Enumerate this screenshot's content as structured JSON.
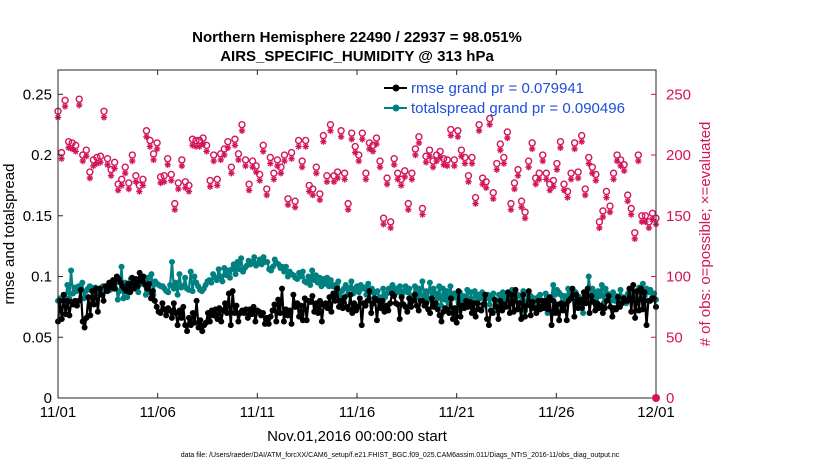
{
  "chart_data": {
    "type": "line",
    "title": "Northern Hemisphere 22490 / 22937 = 98.051%",
    "subtitle": "AIRS_SPECIFIC_HUMIDITY @ 313 hPa",
    "xlabel": "Nov.01,2016 00:00:00 start",
    "ylabel": "rmse and totalspread",
    "ylabel_right": "# of obs: o=possible; ×=evaluated",
    "x_ticks": [
      "11/01",
      "11/06",
      "11/11",
      "11/16",
      "11/21",
      "11/26",
      "12/01"
    ],
    "y_ticks": [
      "0",
      "0.05",
      "0.1",
      "0.15",
      "0.2",
      "0.25"
    ],
    "y_ticks_right": [
      "0",
      "50",
      "100",
      "150",
      "200",
      "250"
    ],
    "xlim_days": [
      0,
      30
    ],
    "ylim": [
      0,
      0.27
    ],
    "ylim_right": [
      0,
      270
    ],
    "footnote": "data file: /Users/raeder/DAI/ATM_forcXX/CAM6_setup/f.e21.FHIST_BGC.f09_025.CAM6assim.011/Diags_NTrS_2016-11/obs_diag_output.nc",
    "colors": {
      "rmse": "#000000",
      "spread": "#008080",
      "obs": "#d3145a",
      "legend_text": "#1f4fdc"
    },
    "series": [
      {
        "name": "rmse grand pr = 0.079941",
        "values": [
          0.063,
          0.08,
          0.065,
          0.085,
          0.069,
          0.08,
          0.068,
          0.079,
          0.077,
          0.08,
          0.076,
          0.08,
          0.089,
          0.063,
          0.058,
          0.066,
          0.083,
          0.068,
          0.088,
          0.077,
          0.09,
          0.071,
          0.09,
          0.085,
          0.08,
          0.092,
          0.088,
          0.095,
          0.091,
          0.097,
          0.09,
          0.1,
          0.098,
          0.095,
          0.092,
          0.09,
          0.088,
          0.094,
          0.087,
          0.099,
          0.09,
          0.098,
          0.092,
          0.103,
          0.096,
          0.1,
          0.093,
          0.09,
          0.094,
          0.082,
          0.088,
          0.08,
          0.075,
          0.071,
          0.07,
          0.078,
          0.073,
          0.068,
          0.074,
          0.072,
          0.066,
          0.078,
          0.07,
          0.06,
          0.072,
          0.066,
          0.075,
          0.06,
          0.055,
          0.066,
          0.06,
          0.07,
          0.062,
          0.08,
          0.058,
          0.064,
          0.055,
          0.06,
          0.062,
          0.07,
          0.063,
          0.072,
          0.068,
          0.073,
          0.065,
          0.074,
          0.063,
          0.072,
          0.078,
          0.07,
          0.086,
          0.06,
          0.088,
          0.07,
          0.076,
          0.063,
          0.07,
          0.072,
          0.07,
          0.073,
          0.066,
          0.073,
          0.069,
          0.075,
          0.063,
          0.072,
          0.071,
          0.068,
          0.07,
          0.061,
          0.066,
          0.061,
          0.067,
          0.072,
          0.077,
          0.063,
          0.081,
          0.07,
          0.09,
          0.063,
          0.073,
          0.068,
          0.072,
          0.061,
          0.085,
          0.075,
          0.078,
          0.067,
          0.076,
          0.064,
          0.082,
          0.064,
          0.08,
          0.079,
          0.084,
          0.071,
          0.078,
          0.07,
          0.08,
          0.063,
          0.077,
          0.078,
          0.074,
          0.083,
          0.071,
          0.086,
          0.08,
          0.09,
          0.075,
          0.08,
          0.074,
          0.083,
          0.075,
          0.073,
          0.085,
          0.07,
          0.078,
          0.072,
          0.075,
          0.082,
          0.06,
          0.078,
          0.076,
          0.08,
          0.088,
          0.07,
          0.078,
          0.082,
          0.064,
          0.08,
          0.074,
          0.08,
          0.071,
          0.076,
          0.072,
          0.078,
          0.086,
          0.084,
          0.078,
          0.077,
          0.065,
          0.083,
          0.077,
          0.075,
          0.071,
          0.082,
          0.075,
          0.08,
          0.085,
          0.076,
          0.072,
          0.08,
          0.08,
          0.076,
          0.078,
          0.073,
          0.07,
          0.082,
          0.075,
          0.078,
          0.073,
          0.068,
          0.063,
          0.071,
          0.074,
          0.073,
          0.07,
          0.082,
          0.065,
          0.074,
          0.062,
          0.088,
          0.067,
          0.076,
          0.074,
          0.08,
          0.075,
          0.079,
          0.07,
          0.078,
          0.067,
          0.078,
          0.073,
          0.072,
          0.077,
          0.085,
          0.065,
          0.06,
          0.072,
          0.07,
          0.081,
          0.075,
          0.065,
          0.08,
          0.072,
          0.077,
          0.075,
          0.087,
          0.07,
          0.085,
          0.071,
          0.089,
          0.073,
          0.078,
          0.065,
          0.085,
          0.067,
          0.076,
          0.088,
          0.068,
          0.079,
          0.074,
          0.07,
          0.08,
          0.073,
          0.08,
          0.074,
          0.08,
          0.073,
          0.083,
          0.06,
          0.08,
          0.07,
          0.077,
          0.064,
          0.078,
          0.072,
          0.077,
          0.064,
          0.08,
          0.082,
          0.09,
          0.067,
          0.085,
          0.074,
          0.081,
          0.074,
          0.087,
          0.078,
          0.09,
          0.07,
          0.084,
          0.079,
          0.072,
          0.078,
          0.074,
          0.076,
          0.07,
          0.074,
          0.08,
          0.084,
          0.075,
          0.067,
          0.074,
          0.073,
          0.083,
          0.075,
          0.078,
          0.082,
          0.08,
          0.08,
          0.09,
          0.071,
          0.093,
          0.066,
          0.088,
          0.072,
          0.09,
          0.073,
          0.087,
          0.06,
          0.08,
          0.08,
          0.082,
          0.082,
          0.075
        ]
      },
      {
        "name": "totalspread grand pr = 0.090496",
        "values": [
          0.08,
          0.082,
          0.081,
          0.083,
          0.08,
          0.093,
          0.082,
          0.105,
          0.086,
          0.091,
          0.088,
          0.092,
          0.089,
          0.095,
          0.082,
          0.088,
          0.09,
          0.092,
          0.091,
          0.084,
          0.091,
          0.086,
          0.09,
          0.089,
          0.092,
          0.09,
          0.09,
          0.091,
          0.089,
          0.09,
          0.09,
          0.095,
          0.081,
          0.088,
          0.108,
          0.082,
          0.095,
          0.083,
          0.09,
          0.098,
          0.094,
          0.093,
          0.09,
          0.087,
          0.095,
          0.094,
          0.096,
          0.085,
          0.099,
          0.087,
          0.102,
          0.085,
          0.096,
          0.094,
          0.093,
          0.092,
          0.092,
          0.09,
          0.088,
          0.087,
          0.093,
          0.112,
          0.09,
          0.095,
          0.085,
          0.102,
          0.091,
          0.092,
          0.099,
          0.09,
          0.089,
          0.104,
          0.088,
          0.1,
          0.095,
          0.092,
          0.089,
          0.088,
          0.09,
          0.093,
          0.096,
          0.097,
          0.095,
          0.102,
          0.099,
          0.097,
          0.106,
          0.1,
          0.096,
          0.107,
          0.101,
          0.105,
          0.099,
          0.106,
          0.11,
          0.102,
          0.112,
          0.106,
          0.115,
          0.104,
          0.107,
          0.109,
          0.113,
          0.11,
          0.112,
          0.116,
          0.109,
          0.111,
          0.114,
          0.11,
          0.116,
          0.112,
          0.112,
          0.106,
          0.105,
          0.108,
          0.114,
          0.111,
          0.11,
          0.107,
          0.108,
          0.104,
          0.108,
          0.1,
          0.104,
          0.102,
          0.101,
          0.099,
          0.098,
          0.103,
          0.1,
          0.104,
          0.096,
          0.095,
          0.1,
          0.093,
          0.105,
          0.097,
          0.101,
          0.095,
          0.099,
          0.092,
          0.098,
          0.094,
          0.099,
          0.092,
          0.097,
          0.092,
          0.093,
          0.09,
          0.096,
          0.082,
          0.088,
          0.09,
          0.093,
          0.085,
          0.09,
          0.096,
          0.086,
          0.09,
          0.092,
          0.087,
          0.093,
          0.09,
          0.091,
          0.085,
          0.094,
          0.087,
          0.09,
          0.082,
          0.087,
          0.088,
          0.083,
          0.078,
          0.09,
          0.083,
          0.086,
          0.09,
          0.087,
          0.093,
          0.085,
          0.09,
          0.087,
          0.092,
          0.085,
          0.088,
          0.092,
          0.087,
          0.09,
          0.084,
          0.082,
          0.092,
          0.083,
          0.09,
          0.085,
          0.096,
          0.083,
          0.088,
          0.082,
          0.095,
          0.08,
          0.09,
          0.086,
          0.082,
          0.092,
          0.076,
          0.09,
          0.081,
          0.088,
          0.078,
          0.092,
          0.082,
          0.086,
          0.083,
          0.072,
          0.087,
          0.078,
          0.084,
          0.08,
          0.089,
          0.076,
          0.087,
          0.077,
          0.088,
          0.079,
          0.085,
          0.082,
          0.087,
          0.076,
          0.082,
          0.085,
          0.077,
          0.084,
          0.086,
          0.08,
          0.072,
          0.085,
          0.082,
          0.087,
          0.078,
          0.084,
          0.082,
          0.086,
          0.089,
          0.082,
          0.08,
          0.085,
          0.084,
          0.079,
          0.088,
          0.072,
          0.086,
          0.082,
          0.084,
          0.08,
          0.082,
          0.078,
          0.083,
          0.085,
          0.08,
          0.079,
          0.086,
          0.07,
          0.08,
          0.083,
          0.093,
          0.085,
          0.089,
          0.087,
          0.085,
          0.075,
          0.084,
          0.08,
          0.09,
          0.086,
          0.083,
          0.082,
          0.087,
          0.08,
          0.083,
          0.079,
          0.07,
          0.085,
          0.08,
          0.1,
          0.086,
          0.09,
          0.087,
          0.082,
          0.088,
          0.084,
          0.093,
          0.078,
          0.09,
          0.086,
          0.084,
          0.08,
          0.087,
          0.08,
          0.084,
          0.08,
          0.089,
          0.081,
          0.083,
          0.078,
          0.086,
          0.088,
          0.09,
          0.084,
          0.083,
          0.087,
          0.091,
          0.088,
          0.094,
          0.084,
          0.09,
          0.087,
          0.089,
          0.083,
          0.086,
          0.081
        ]
      }
    ],
    "obs_possible": [
      236,
      202,
      245,
      211,
      210,
      208,
      246,
      200,
      204,
      186,
      196,
      198,
      199,
      236,
      197,
      188,
      194,
      176,
      180,
      190,
      177,
      200,
      183,
      175,
      180,
      220,
      212,
      201,
      210,
      182,
      183,
      197,
      184,
      160,
      177,
      196,
      178,
      175,
      213,
      212,
      212,
      214,
      208,
      179,
      200,
      180,
      201,
      205,
      211,
      190,
      213,
      201,
      225,
      196,
      176,
      195,
      191,
      184,
      208,
      172,
      198,
      185,
      196,
      190,
      200,
      164,
      202,
      162,
      212,
      195,
      212,
      175,
      172,
      190,
      168,
      216,
      183,
      225,
      183,
      186,
      220,
      185,
      160,
      218,
      207,
      200,
      218,
      185,
      210,
      208,
      214,
      195,
      148,
      181,
      145,
      197,
      185,
      180,
      187,
      160,
      185,
      205,
      215,
      156,
      199,
      204,
      195,
      200,
      203,
      197,
      196,
      221,
      196,
      220,
      204,
      198,
      183,
      198,
      165,
      225,
      181,
      178,
      230,
      169,
      193,
      209,
      198,
      219,
      160,
      177,
      188,
      162,
      153,
      195,
      210,
      181,
      185,
      200,
      185,
      176,
      179,
      193,
      211,
      176,
      170,
      185,
      210,
      186,
      216,
      172,
      198,
      190,
      184,
      145,
      154,
      170,
      158,
      185,
      200,
      196,
      192,
      167,
      156,
      136,
      200,
      150,
      150,
      145,
      152,
      148
    ]
  }
}
